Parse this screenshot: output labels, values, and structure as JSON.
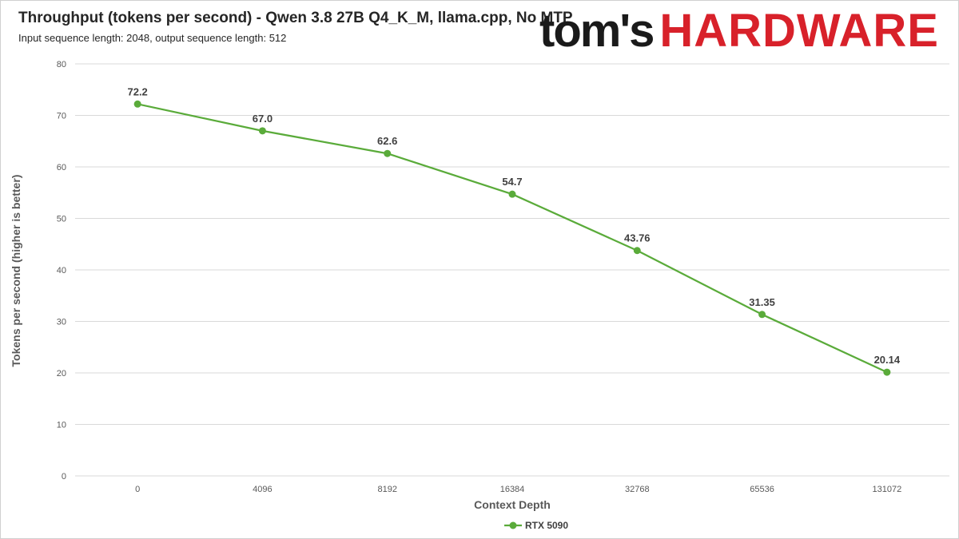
{
  "header": {
    "title": "Throughput (tokens per second) - Qwen 3.8 27B Q4_K_M, llama.cpp, No MTP",
    "subtitle": "Input sequence length: 2048, output sequence length: 512"
  },
  "logo": {
    "text_a": "tom's",
    "text_b": "HARDWARE",
    "colors": {
      "dark": "#1a1a1a",
      "red": "#d8212a"
    }
  },
  "chart_data": {
    "type": "line",
    "title": "Throughput (tokens per second) - Qwen 3.8 27B Q4_K_M, llama.cpp, No MTP",
    "subtitle": "Input sequence length: 2048, output sequence length: 512",
    "xlabel": "Context Depth",
    "ylabel": "Tokens per second (higher is better)",
    "categories": [
      "0",
      "4096",
      "8192",
      "16384",
      "32768",
      "65536",
      "131072"
    ],
    "ylim": [
      0,
      80
    ],
    "yticks": [
      0,
      10,
      20,
      30,
      40,
      50,
      60,
      70,
      80
    ],
    "grid": true,
    "legend_position": "bottom-center",
    "series": [
      {
        "name": "RTX 5090",
        "color": "#5aab3a",
        "values": [
          72.2,
          67.0,
          62.6,
          54.7,
          43.76,
          31.35,
          20.14
        ],
        "labels": [
          "72.2",
          "67.0",
          "62.6",
          "54.7",
          "43.76",
          "31.35",
          "20.14"
        ]
      }
    ]
  }
}
